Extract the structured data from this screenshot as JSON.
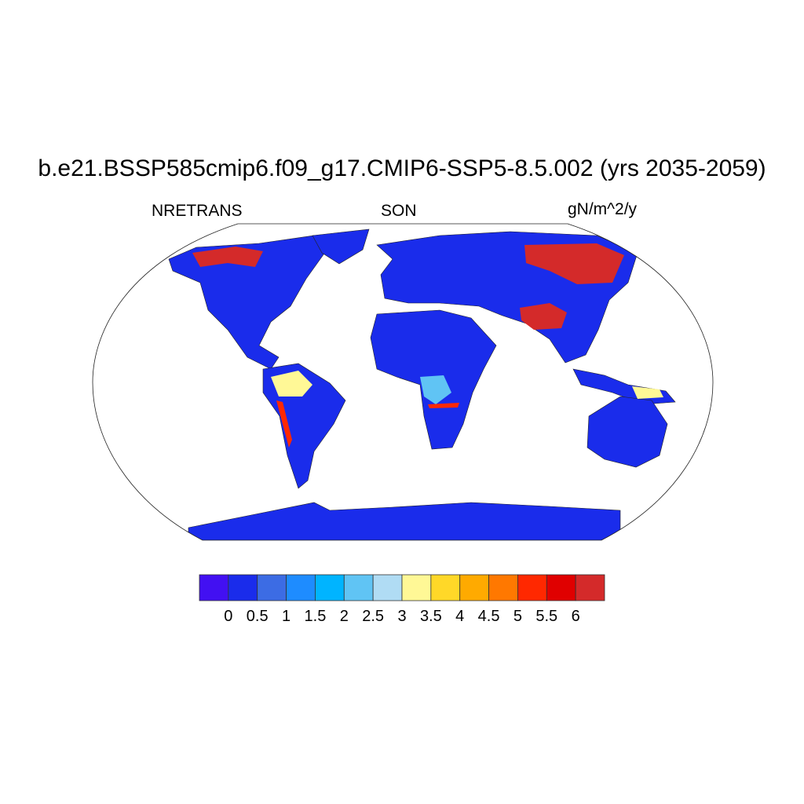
{
  "title": "b.e21.BSSP585cmip6.f09_g17.CMIP6-SSP5-8.5.002 (yrs 2035-2059)",
  "left_label": "NRETRANS",
  "center_label": "SON",
  "right_label": "gN/m^2/y",
  "map": {
    "projection": "Robinson",
    "variable": "NRETRANS",
    "season": "SON",
    "units": "gN/m^2/y"
  },
  "colorbar": {
    "tick_labels": [
      "0",
      "0.5",
      "1",
      "1.5",
      "2",
      "2.5",
      "3",
      "3.5",
      "4",
      "4.5",
      "5",
      "5.5",
      "6"
    ],
    "colors": [
      "#4210f2",
      "#1a2ceb",
      "#3c6ce4",
      "#1e8cff",
      "#00b4ff",
      "#60c4f4",
      "#b0dcf4",
      "#fff896",
      "#ffd828",
      "#ffaa00",
      "#ff7800",
      "#ff2800",
      "#e00000",
      "#d42a2a"
    ]
  }
}
